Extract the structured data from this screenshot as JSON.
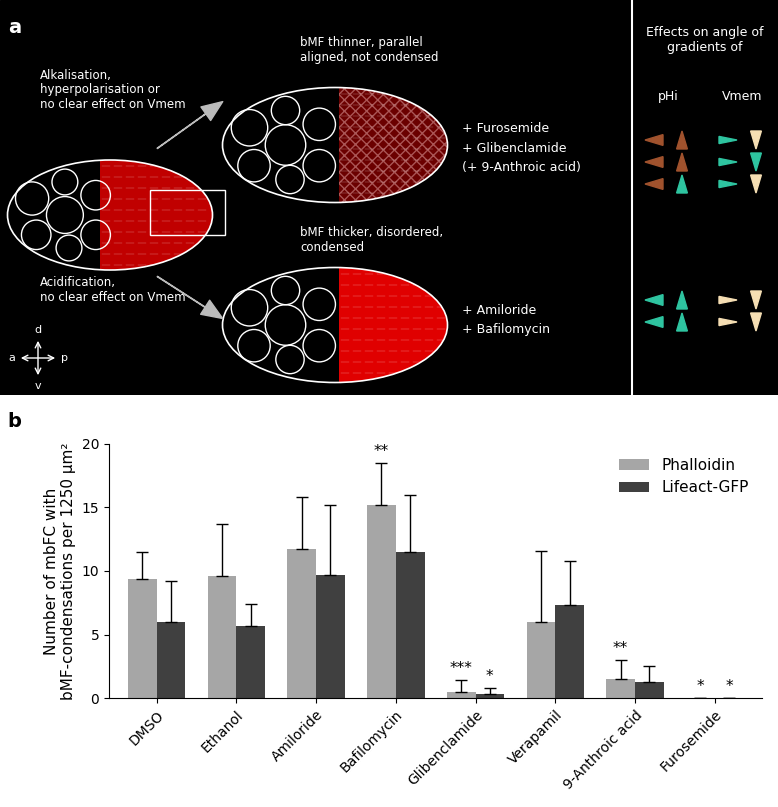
{
  "diagram": {
    "panel_label": "a",
    "upper_condition": "Alkalisation,\nhyperpolarisation or\nno clear effect on Vmem",
    "upper_result": "bMF thinner, parallel\naligned, not condensed",
    "upper_treatments": [
      "+ Furosemide",
      "+ Glibenclamide",
      "(+ 9-Anthroic acid)"
    ],
    "lower_condition": "Acidification,\nno clear effect on Vmem",
    "lower_result": "bMF thicker, disordered,\ncondensed",
    "lower_treatments": [
      "+ Amiloride",
      "+ Bafilomycin"
    ],
    "effects_header": "Effects on angle of\ngradients of",
    "effects_columns": [
      "pHi",
      "Vmem"
    ],
    "compass": {
      "up": "d",
      "down": "v",
      "left": "a",
      "right": "p"
    }
  },
  "chart_data": {
    "type": "bar",
    "panel_label": "b",
    "ylabel": "Number of mbFC with\nbMF-condensations per 1250 µm²",
    "categories": [
      "DMSO",
      "Ethanol",
      "Amiloride",
      "Bafilomycin",
      "Glibenclamide",
      "Verapamil",
      "9-Anthroic acid",
      "Furosemide"
    ],
    "series": [
      {
        "name": "Phalloidin",
        "color": "#a6a6a6",
        "values": [
          9.4,
          9.6,
          11.7,
          15.2,
          0.5,
          6.0,
          1.5,
          0
        ],
        "errors": [
          2.1,
          4.1,
          4.1,
          3.3,
          0.9,
          5.6,
          1.5,
          0
        ],
        "significance": [
          null,
          null,
          null,
          "**",
          "***",
          null,
          "**",
          "*"
        ]
      },
      {
        "name": "Lifeact-GFP",
        "color": "#404040",
        "values": [
          6.0,
          5.7,
          9.7,
          11.5,
          0.3,
          7.3,
          1.3,
          0
        ],
        "errors": [
          3.2,
          1.7,
          5.5,
          4.5,
          0.5,
          3.5,
          1.2,
          0
        ],
        "significance": [
          null,
          null,
          null,
          null,
          "*",
          null,
          null,
          "*"
        ]
      }
    ],
    "ylim": [
      0,
      20
    ],
    "yticks": [
      0,
      5,
      10,
      15,
      20
    ],
    "legend": "upper right",
    "grid": false
  }
}
